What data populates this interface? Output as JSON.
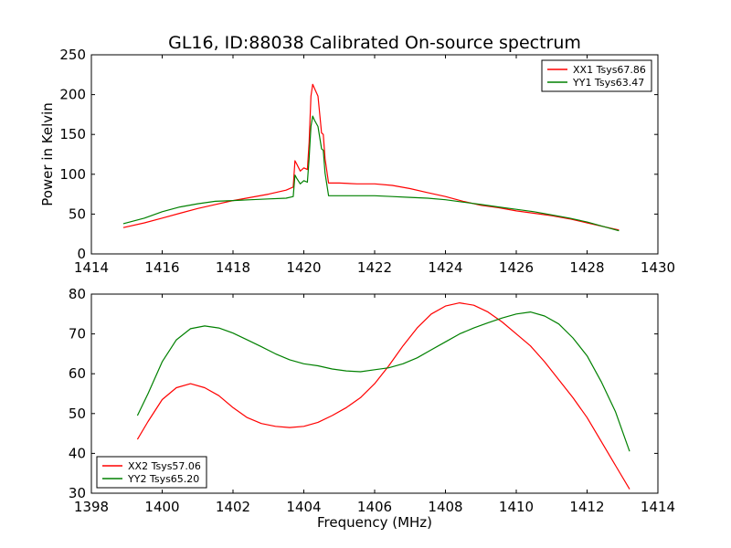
{
  "chart_data": [
    {
      "type": "line",
      "title": "GL16, ID:88038 Calibrated On-source spectrum",
      "xlabel": "",
      "ylabel": "Power in Kelvin",
      "xlim": [
        1414,
        1430
      ],
      "ylim": [
        0,
        250
      ],
      "xticks": [
        "1414",
        "1416",
        "1418",
        "1420",
        "1422",
        "1424",
        "1426",
        "1428",
        "1430"
      ],
      "yticks": [
        "0",
        "50",
        "100",
        "150",
        "200",
        "250"
      ],
      "legend_position": "top-right",
      "grid": false,
      "series": [
        {
          "name": "XX1 Tsys67.86",
          "color": "#ff0000",
          "points": [
            [
              1414.9,
              33
            ],
            [
              1415.5,
              39
            ],
            [
              1416,
              45
            ],
            [
              1416.5,
              51
            ],
            [
              1417,
              57
            ],
            [
              1417.5,
              62
            ],
            [
              1418,
              67
            ],
            [
              1418.5,
              71
            ],
            [
              1419,
              75
            ],
            [
              1419.5,
              80
            ],
            [
              1419.7,
              84
            ],
            [
              1419.75,
              117
            ],
            [
              1419.8,
              113
            ],
            [
              1419.9,
              104
            ],
            [
              1420.0,
              108
            ],
            [
              1420.1,
              106
            ],
            [
              1420.15,
              140
            ],
            [
              1420.2,
              198
            ],
            [
              1420.25,
              213
            ],
            [
              1420.3,
              208
            ],
            [
              1420.4,
              198
            ],
            [
              1420.5,
              152
            ],
            [
              1420.55,
              150
            ],
            [
              1420.6,
              120
            ],
            [
              1420.7,
              89
            ],
            [
              1421,
              89
            ],
            [
              1421.5,
              88
            ],
            [
              1422,
              88
            ],
            [
              1422.5,
              86
            ],
            [
              1423,
              82
            ],
            [
              1423.5,
              77
            ],
            [
              1424,
              72
            ],
            [
              1424.5,
              66
            ],
            [
              1425,
              61
            ],
            [
              1425.5,
              58
            ],
            [
              1426,
              54
            ],
            [
              1426.5,
              51
            ],
            [
              1427,
              48
            ],
            [
              1427.5,
              44
            ],
            [
              1428,
              39
            ],
            [
              1428.5,
              34
            ],
            [
              1428.9,
              30
            ]
          ]
        },
        {
          "name": "YY1 Tsys63.47",
          "color": "#008000",
          "points": [
            [
              1414.9,
              38
            ],
            [
              1415.5,
              45
            ],
            [
              1416,
              53
            ],
            [
              1416.5,
              59
            ],
            [
              1417,
              63
            ],
            [
              1417.5,
              66
            ],
            [
              1418,
              67
            ],
            [
              1418.5,
              68
            ],
            [
              1419,
              69
            ],
            [
              1419.5,
              70
            ],
            [
              1419.7,
              72
            ],
            [
              1419.75,
              99
            ],
            [
              1419.8,
              95
            ],
            [
              1419.9,
              88
            ],
            [
              1420.0,
              92
            ],
            [
              1420.1,
              90
            ],
            [
              1420.15,
              120
            ],
            [
              1420.2,
              160
            ],
            [
              1420.25,
              173
            ],
            [
              1420.3,
              168
            ],
            [
              1420.4,
              160
            ],
            [
              1420.5,
              132
            ],
            [
              1420.55,
              130
            ],
            [
              1420.6,
              102
            ],
            [
              1420.7,
              73
            ],
            [
              1421,
              73
            ],
            [
              1421.5,
              73
            ],
            [
              1422,
              73
            ],
            [
              1422.5,
              72
            ],
            [
              1423,
              71
            ],
            [
              1423.5,
              70
            ],
            [
              1424,
              68
            ],
            [
              1424.5,
              65
            ],
            [
              1425,
              62
            ],
            [
              1425.5,
              59
            ],
            [
              1426,
              56
            ],
            [
              1426.5,
              53
            ],
            [
              1427,
              49
            ],
            [
              1427.5,
              45
            ],
            [
              1428,
              40
            ],
            [
              1428.5,
              34
            ],
            [
              1428.9,
              29
            ]
          ]
        }
      ]
    },
    {
      "type": "line",
      "title": "",
      "xlabel": "Frequency (MHz)",
      "ylabel": "",
      "xlim": [
        1398,
        1414
      ],
      "ylim": [
        30,
        80
      ],
      "xticks": [
        "1398",
        "1400",
        "1402",
        "1404",
        "1406",
        "1408",
        "1410",
        "1412",
        "1414"
      ],
      "yticks": [
        "30",
        "40",
        "50",
        "60",
        "70",
        "80"
      ],
      "legend_position": "bottom-left",
      "grid": false,
      "series": [
        {
          "name": "XX2 Tsys57.06",
          "color": "#ff0000",
          "points": [
            [
              1399.3,
              43.5
            ],
            [
              1399.6,
              48
            ],
            [
              1400,
              53.5
            ],
            [
              1400.4,
              56.5
            ],
            [
              1400.8,
              57.5
            ],
            [
              1401.2,
              56.5
            ],
            [
              1401.6,
              54.5
            ],
            [
              1402,
              51.5
            ],
            [
              1402.4,
              49
            ],
            [
              1402.8,
              47.5
            ],
            [
              1403.2,
              46.8
            ],
            [
              1403.6,
              46.5
            ],
            [
              1404,
              46.8
            ],
            [
              1404.4,
              47.8
            ],
            [
              1404.8,
              49.5
            ],
            [
              1405.2,
              51.5
            ],
            [
              1405.6,
              54
            ],
            [
              1406,
              57.5
            ],
            [
              1406.4,
              62
            ],
            [
              1406.8,
              67
            ],
            [
              1407.2,
              71.5
            ],
            [
              1407.6,
              75
            ],
            [
              1408,
              77
            ],
            [
              1408.4,
              77.8
            ],
            [
              1408.8,
              77.2
            ],
            [
              1409.2,
              75.5
            ],
            [
              1409.6,
              73
            ],
            [
              1410,
              70
            ],
            [
              1410.4,
              67
            ],
            [
              1410.8,
              63
            ],
            [
              1411.2,
              58.5
            ],
            [
              1411.6,
              54
            ],
            [
              1412,
              49
            ],
            [
              1412.4,
              43
            ],
            [
              1412.8,
              37
            ],
            [
              1413.2,
              31
            ]
          ]
        },
        {
          "name": "YY2 Tsys65.20",
          "color": "#008000",
          "points": [
            [
              1399.3,
              49.5
            ],
            [
              1399.6,
              55
            ],
            [
              1400,
              63
            ],
            [
              1400.4,
              68.5
            ],
            [
              1400.8,
              71.3
            ],
            [
              1401.2,
              72
            ],
            [
              1401.6,
              71.5
            ],
            [
              1402,
              70.2
            ],
            [
              1402.4,
              68.5
            ],
            [
              1402.8,
              66.8
            ],
            [
              1403.2,
              65
            ],
            [
              1403.6,
              63.5
            ],
            [
              1404,
              62.5
            ],
            [
              1404.4,
              62
            ],
            [
              1404.8,
              61.2
            ],
            [
              1405.2,
              60.7
            ],
            [
              1405.6,
              60.5
            ],
            [
              1406,
              61
            ],
            [
              1406.4,
              61.5
            ],
            [
              1406.8,
              62.5
            ],
            [
              1407.2,
              64
            ],
            [
              1407.6,
              66
            ],
            [
              1408,
              68
            ],
            [
              1408.4,
              70
            ],
            [
              1408.8,
              71.5
            ],
            [
              1409.2,
              72.8
            ],
            [
              1409.6,
              74
            ],
            [
              1410,
              75
            ],
            [
              1410.4,
              75.5
            ],
            [
              1410.8,
              74.5
            ],
            [
              1411.2,
              72.5
            ],
            [
              1411.6,
              69
            ],
            [
              1412,
              64.5
            ],
            [
              1412.4,
              58
            ],
            [
              1412.8,
              50.5
            ],
            [
              1413.2,
              40.5
            ]
          ]
        }
      ]
    }
  ]
}
